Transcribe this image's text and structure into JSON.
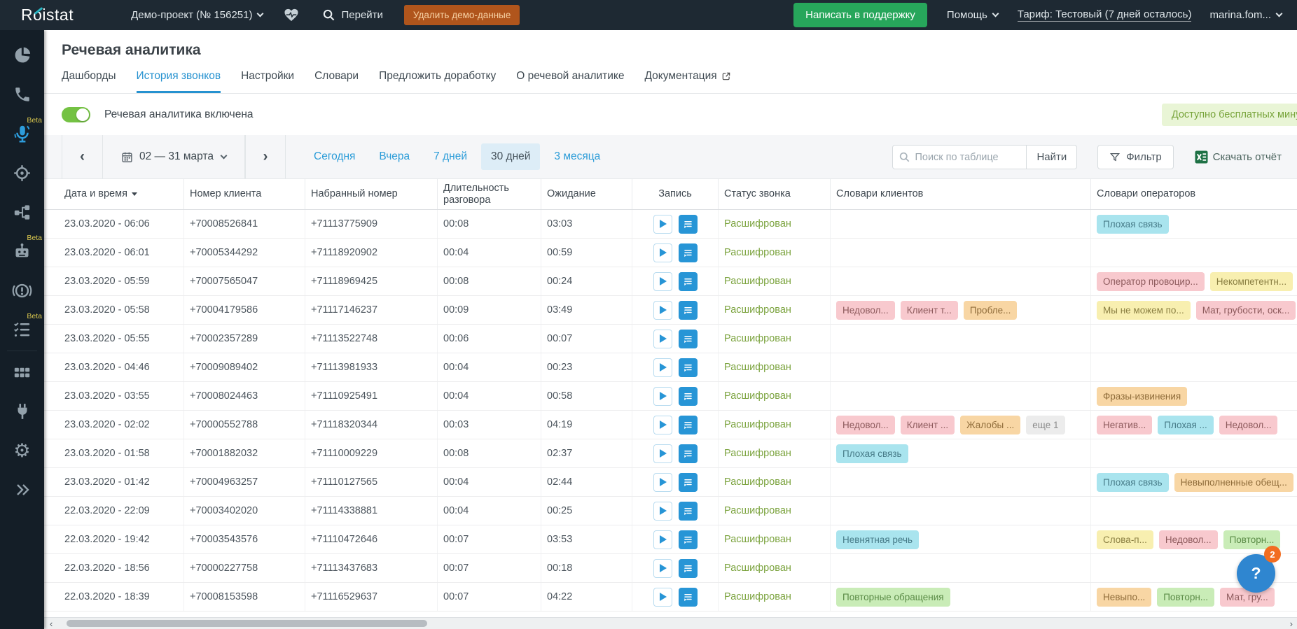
{
  "topbar": {
    "logo_prefix": "R",
    "logo_o": "o",
    "logo_suffix": "istat",
    "project": "Демо-проект  (№ 156251)",
    "go_label": "Перейти",
    "delete_demo_label": "Удалить демо-данные",
    "support_label": "Написать в поддержку",
    "help_label": "Помощь",
    "tariff_label": "Тариф: Тестовый (7 дней осталось)",
    "user_label": "marina.fom..."
  },
  "sidebar": {
    "beta_label": "Beta"
  },
  "page": {
    "title": "Речевая аналитика",
    "tabs": [
      {
        "label": "Дашборды"
      },
      {
        "label": "История звонков"
      },
      {
        "label": "Настройки"
      },
      {
        "label": "Словари"
      },
      {
        "label": "Предложить доработку"
      },
      {
        "label": "О речевой аналитике"
      },
      {
        "label": "Документация"
      }
    ],
    "toggle_label": "Речевая аналитика включена",
    "free_minutes_label": "Доступно бесплатных минут"
  },
  "toolbar": {
    "nav_prev": "‹",
    "nav_next": "›",
    "date_range": "02 — 31 марта",
    "quick_filters": [
      "Сегодня",
      "Вчера",
      "7 дней",
      "30 дней",
      "3 месяца"
    ],
    "active_quick_filter": "30 дней",
    "search_placeholder": "Поиск по таблице",
    "find_label": "Найти",
    "filter_label": "Фильтр",
    "download_label": "Скачать отчёт"
  },
  "colors": {
    "accent_blue": "#2795d6",
    "status_green": "#7ba33e",
    "tags": {
      "pink": {
        "bg": "#f8c9ce",
        "fg": "#8d5a5c"
      },
      "orange": {
        "bg": "#f8d6a4",
        "fg": "#8f6c3a"
      },
      "yellow": {
        "bg": "#f8efb0",
        "fg": "#8a7f42"
      },
      "cyan": {
        "bg": "#a9e4ee",
        "fg": "#477b88"
      },
      "green": {
        "bg": "#c9ecb7",
        "fg": "#5a8b46"
      },
      "gray": {
        "bg": "#ececec",
        "fg": "#8a8a8a"
      }
    }
  },
  "table": {
    "columns": [
      "Дата и время",
      "Номер клиента",
      "Набранный номер",
      "Длительность разговора",
      "Ожидание",
      "Запись",
      "Статус звонка",
      "Словари клиентов",
      "Словари операторов"
    ],
    "rows": [
      {
        "datetime": "23.03.2020 - 06:06",
        "client": "+70008526841",
        "dialed": "+71113775909",
        "duration": "00:08",
        "waiting": "03:03",
        "status": "Расшифрован",
        "client_tags": [],
        "operator_tags": [
          {
            "text": "Плохая связь",
            "color": "cyan"
          }
        ]
      },
      {
        "datetime": "23.03.2020 - 06:01",
        "client": "+70005344292",
        "dialed": "+71118920902",
        "duration": "00:04",
        "waiting": "00:59",
        "status": "Расшифрован",
        "client_tags": [],
        "operator_tags": []
      },
      {
        "datetime": "23.03.2020 - 05:59",
        "client": "+70007565047",
        "dialed": "+71118969425",
        "duration": "00:08",
        "waiting": "00:24",
        "status": "Расшифрован",
        "client_tags": [],
        "operator_tags": [
          {
            "text": "Оператор провоцир...",
            "color": "pink"
          },
          {
            "text": "Некомпетентн...",
            "color": "yellow"
          }
        ]
      },
      {
        "datetime": "23.03.2020 - 05:58",
        "client": "+70004179586",
        "dialed": "+71117146237",
        "duration": "00:09",
        "waiting": "03:49",
        "status": "Расшифрован",
        "client_tags": [
          {
            "text": "Недовол...",
            "color": "pink"
          },
          {
            "text": "Клиент т...",
            "color": "pink"
          },
          {
            "text": "Пробле...",
            "color": "orange"
          }
        ],
        "operator_tags": [
          {
            "text": "Мы не можем по...",
            "color": "yellow"
          },
          {
            "text": "Мат, грубости, оск...",
            "color": "pink"
          }
        ]
      },
      {
        "datetime": "23.03.2020 - 05:55",
        "client": "+70002357289",
        "dialed": "+71113522748",
        "duration": "00:06",
        "waiting": "00:07",
        "status": "Расшифрован",
        "client_tags": [],
        "operator_tags": []
      },
      {
        "datetime": "23.03.2020 - 04:46",
        "client": "+70009089402",
        "dialed": "+71113981933",
        "duration": "00:04",
        "waiting": "00:23",
        "status": "Расшифрован",
        "client_tags": [],
        "operator_tags": []
      },
      {
        "datetime": "23.03.2020 - 03:55",
        "client": "+70008024463",
        "dialed": "+71110925491",
        "duration": "00:04",
        "waiting": "00:58",
        "status": "Расшифрован",
        "client_tags": [],
        "operator_tags": [
          {
            "text": "Фразы-извинения",
            "color": "orange"
          }
        ]
      },
      {
        "datetime": "23.03.2020 - 02:02",
        "client": "+70000552788",
        "dialed": "+71118320344",
        "duration": "00:03",
        "waiting": "04:19",
        "status": "Расшифрован",
        "client_tags": [
          {
            "text": "Недовол...",
            "color": "pink"
          },
          {
            "text": "Клиент ...",
            "color": "pink"
          },
          {
            "text": "Жалобы ...",
            "color": "orange"
          },
          {
            "text": "еще 1",
            "color": "gray"
          }
        ],
        "operator_tags": [
          {
            "text": "Негатив...",
            "color": "pink"
          },
          {
            "text": "Плохая ...",
            "color": "cyan"
          },
          {
            "text": "Недовол...",
            "color": "pink"
          }
        ]
      },
      {
        "datetime": "23.03.2020 - 01:58",
        "client": "+70001882032",
        "dialed": "+71110009229",
        "duration": "00:08",
        "waiting": "02:37",
        "status": "Расшифрован",
        "client_tags": [
          {
            "text": "Плохая связь",
            "color": "cyan"
          }
        ],
        "operator_tags": []
      },
      {
        "datetime": "23.03.2020 - 01:42",
        "client": "+70004963257",
        "dialed": "+71110127565",
        "duration": "00:04",
        "waiting": "02:44",
        "status": "Расшифрован",
        "client_tags": [],
        "operator_tags": [
          {
            "text": "Плохая связь",
            "color": "cyan"
          },
          {
            "text": "Невыполненные обещ...",
            "color": "orange"
          }
        ]
      },
      {
        "datetime": "22.03.2020 - 22:09",
        "client": "+70003402020",
        "dialed": "+71114338881",
        "duration": "00:04",
        "waiting": "00:25",
        "status": "Расшифрован",
        "client_tags": [],
        "operator_tags": []
      },
      {
        "datetime": "22.03.2020 - 19:42",
        "client": "+70003543576",
        "dialed": "+71110472646",
        "duration": "00:07",
        "waiting": "03:53",
        "status": "Расшифрован",
        "client_tags": [
          {
            "text": "Невнятная речь",
            "color": "cyan"
          }
        ],
        "operator_tags": [
          {
            "text": "Слова-п...",
            "color": "yellow"
          },
          {
            "text": "Недовол...",
            "color": "pink"
          },
          {
            "text": "Повторн...",
            "color": "green"
          }
        ]
      },
      {
        "datetime": "22.03.2020 - 18:56",
        "client": "+70000227758",
        "dialed": "+71113437683",
        "duration": "00:07",
        "waiting": "00:18",
        "status": "Расшифрован",
        "client_tags": [],
        "operator_tags": []
      },
      {
        "datetime": "22.03.2020 - 18:39",
        "client": "+70008153598",
        "dialed": "+71116529637",
        "duration": "00:07",
        "waiting": "04:22",
        "status": "Расшифрован",
        "client_tags": [
          {
            "text": "Повторные обращения",
            "color": "green"
          }
        ],
        "operator_tags": [
          {
            "text": "Невыпо...",
            "color": "orange"
          },
          {
            "text": "Повторн...",
            "color": "green"
          },
          {
            "text": "Мат, гру...",
            "color": "pink"
          }
        ]
      }
    ]
  },
  "help_widget": {
    "icon": "?",
    "badge": "2"
  }
}
